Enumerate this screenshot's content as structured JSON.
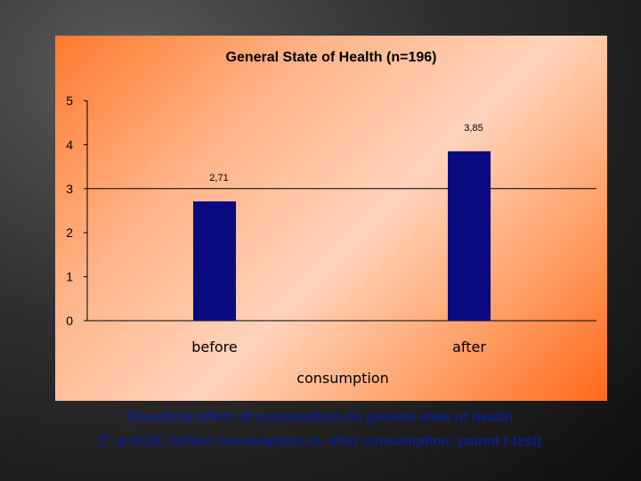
{
  "chart_data": {
    "type": "bar",
    "title": "General State of Health (n=196)",
    "categories": [
      "before",
      "after"
    ],
    "values": [
      2.71,
      3.85
    ],
    "value_labels": [
      "2,71",
      "3,85"
    ],
    "xlabel": "consumption",
    "ylabel": "",
    "ylim": [
      0,
      5
    ],
    "y_ticks": [
      0,
      1,
      2,
      3,
      4,
      5
    ],
    "reference_line": 3,
    "bar_color": "#0a0a80",
    "grid": false,
    "legend": "none"
  },
  "caption": {
    "line1": "Beneficial effect of consumption on general state of health",
    "line2": "(*: p<0,05; before consumption vs. after consumption; paired t-test)"
  }
}
